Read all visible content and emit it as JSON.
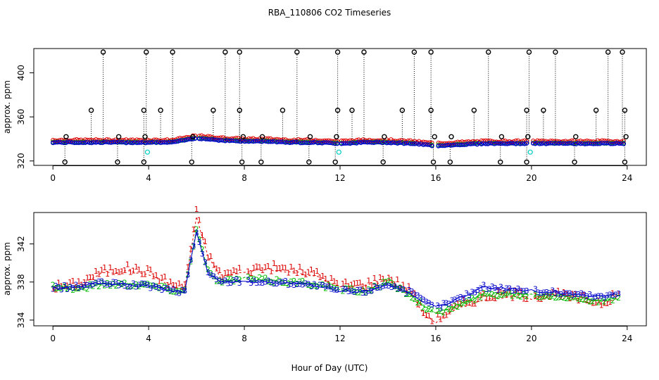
{
  "title": "RBA_110806  CO2 Timeseries",
  "xlabel": "Hour of Day (UTC)",
  "colors": {
    "series1": "#dd0000",
    "series2": "#00bb00",
    "series3": "#0000cc",
    "flagged": "#000000",
    "cyan": "#00cccc"
  },
  "chart_data": [
    {
      "type": "scatter",
      "title": "RBA_110806  CO2 Timeseries",
      "xlabel": "",
      "ylabel": "approx. ppm",
      "xlim": [
        -0.8,
        24.8
      ],
      "ylim": [
        316,
        422
      ],
      "xticks": [
        0,
        4,
        8,
        12,
        16,
        20,
        24
      ],
      "yticks": [
        320,
        360,
        400
      ],
      "baseline_hours": [
        0,
        1,
        2,
        3,
        4,
        5,
        6,
        7,
        8,
        9,
        10,
        11,
        12,
        13,
        14,
        15,
        16,
        17,
        18,
        19,
        20,
        21,
        22,
        23,
        24
      ],
      "baseline_values": [
        337,
        337,
        337,
        337,
        337,
        337,
        341,
        339,
        338,
        338,
        337,
        337,
        336,
        337,
        337,
        336,
        334,
        335,
        336,
        336,
        336,
        336,
        336,
        336,
        336
      ],
      "spikes_high": [
        2.1,
        3.9,
        5.0,
        7.2,
        7.8,
        10.2,
        11.9,
        13.0,
        15.1,
        15.8,
        18.2,
        19.9,
        21.0,
        23.2,
        23.8
      ],
      "spikes_mid": [
        1.6,
        3.8,
        4.5,
        6.7,
        7.8,
        9.6,
        11.9,
        12.5,
        14.6,
        15.8,
        17.6,
        19.8,
        20.5,
        22.7,
        23.9
      ],
      "spikes_low": [
        0.5,
        2.7,
        3.8,
        5.8,
        7.9,
        8.7,
        10.7,
        11.8,
        13.8,
        15.9,
        16.6,
        18.7,
        19.8,
        21.8,
        23.9
      ],
      "cyan_points": [
        [
          3.95,
          328
        ],
        [
          11.95,
          328
        ],
        [
          19.95,
          328
        ]
      ],
      "gaps": [
        [
          5.95,
          6.05
        ],
        [
          11.9,
          12.05
        ],
        [
          15.85,
          16.05
        ],
        [
          19.85,
          20.05
        ]
      ]
    },
    {
      "type": "scatter",
      "title": "",
      "xlabel": "Hour of Day (UTC)",
      "ylabel": "approx. ppm",
      "xlim": [
        -0.8,
        24.8
      ],
      "ylim": [
        333.4,
        345.3
      ],
      "xticks": [
        0,
        4,
        8,
        12,
        16,
        20,
        24
      ],
      "yticks": [
        334,
        338,
        342
      ],
      "series": [
        {
          "name": "1",
          "hours": [
            0,
            1,
            2,
            3,
            4,
            5,
            5.5,
            6,
            6.5,
            7,
            8,
            9,
            10,
            11,
            12,
            13,
            14,
            15,
            15.5,
            16,
            17,
            18,
            19,
            20,
            21,
            22,
            23,
            23.7
          ],
          "values": [
            337.2,
            337.5,
            338.8,
            339.2,
            338.8,
            337.5,
            337.2,
            345.0,
            340.5,
            338.5,
            339.0,
            339.3,
            339.0,
            338.6,
            337.4,
            337.5,
            338.2,
            336.8,
            334.5,
            333.8,
            335.3,
            336.2,
            336.5,
            336.3,
            336.4,
            336.0,
            335.6,
            336.5
          ]
        },
        {
          "name": "2",
          "hours": [
            0,
            1,
            2,
            3,
            4,
            5,
            5.5,
            6,
            6.5,
            7,
            8,
            9,
            10,
            11,
            12,
            13,
            14,
            15,
            15.5,
            16,
            17,
            18,
            19,
            20,
            21,
            22,
            23,
            23.7
          ],
          "values": [
            337.6,
            337.3,
            337.8,
            337.8,
            337.7,
            337.2,
            337.0,
            343.5,
            339.0,
            338.0,
            338.4,
            338.2,
            338.0,
            337.8,
            337.2,
            337.0,
            338.0,
            336.6,
            335.5,
            334.7,
            335.6,
            336.7,
            336.8,
            336.6,
            336.6,
            336.3,
            336.0,
            336.4
          ]
        },
        {
          "name": "3",
          "hours": [
            0,
            1,
            2,
            3,
            4,
            5,
            5.5,
            6,
            6.5,
            7,
            8,
            9,
            10,
            11,
            12,
            13,
            14,
            15,
            15.5,
            16,
            17,
            18,
            19,
            20,
            21,
            22,
            23,
            23.7
          ],
          "values": [
            337.4,
            337.5,
            337.9,
            337.7,
            337.6,
            337.1,
            336.9,
            343.3,
            338.8,
            338.0,
            338.2,
            338.0,
            337.9,
            337.6,
            337.1,
            337.0,
            337.8,
            336.8,
            336.0,
            335.3,
            336.3,
            337.5,
            337.3,
            337.1,
            336.9,
            336.7,
            336.4,
            336.9
          ]
        }
      ]
    }
  ]
}
